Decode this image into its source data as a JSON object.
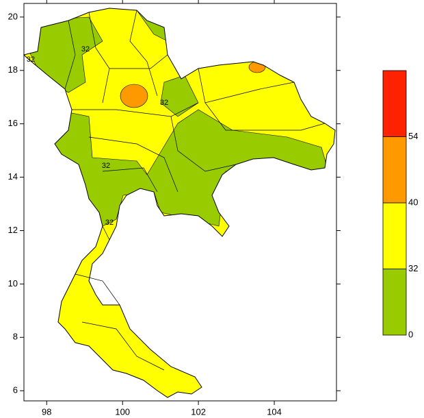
{
  "map": {
    "xlim": [
      97.4,
      105.64
    ],
    "ylim": [
      5.62,
      20.51
    ],
    "xticks": [
      98,
      100,
      102,
      104
    ],
    "yticks": [
      6,
      8,
      10,
      12,
      14,
      16,
      18,
      20
    ],
    "colorbar": {
      "levels": [
        0,
        32,
        40,
        54
      ],
      "colors": [
        "#99cc00",
        "#ffff00",
        "#ff9900",
        "#ff2200"
      ]
    },
    "contour_labels": [
      32,
      32,
      32,
      32,
      32
    ]
  }
}
